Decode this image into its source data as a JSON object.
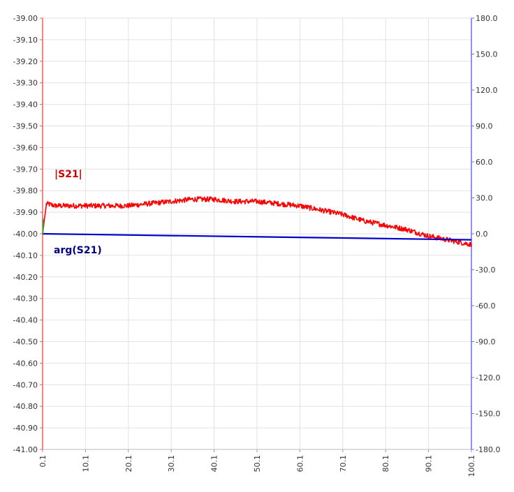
{
  "chart_data": {
    "type": "line",
    "x_ticks": [
      "0.1",
      "10.1",
      "20.1",
      "30.1",
      "40.1",
      "50.1",
      "60.1",
      "70.1",
      "80.1",
      "90.1",
      "100.1"
    ],
    "xlim": [
      0.1,
      100.1
    ],
    "y_left": {
      "ylim": [
        -41.0,
        -39.0
      ],
      "ticks": [
        "-39.00",
        "-39.10",
        "-39.20",
        "-39.30",
        "-39.40",
        "-39.50",
        "-39.60",
        "-39.70",
        "-39.80",
        "-39.90",
        "-40.00",
        "-40.10",
        "-40.20",
        "-40.30",
        "-40.40",
        "-40.50",
        "-40.60",
        "-40.70",
        "-40.80",
        "-40.90",
        "-41.00"
      ],
      "axis_color": "#ff5a5a"
    },
    "y_right": {
      "ylim": [
        -180.0,
        180.0
      ],
      "ticks": [
        "180.0",
        "150.0",
        "120.0",
        "90.0",
        "60.0",
        "30.0",
        "0.0",
        "-30.0",
        "-60.0",
        "-90.0",
        "-120.0",
        "-150.0",
        "-180.0"
      ],
      "axis_color": "#6a6aff"
    },
    "grid": true,
    "series": [
      {
        "name": "|S21|",
        "axis": "left",
        "color": "#ff0000",
        "x": [
          0.1,
          1,
          3,
          5,
          8,
          10,
          15,
          20,
          25,
          30,
          35,
          40,
          45,
          50,
          55,
          60,
          65,
          70,
          75,
          80,
          85,
          90,
          95,
          100.1
        ],
        "y": [
          -40.0,
          -39.86,
          -39.87,
          -39.87,
          -39.87,
          -39.87,
          -39.87,
          -39.87,
          -39.86,
          -39.85,
          -39.84,
          -39.84,
          -39.85,
          -39.85,
          -39.86,
          -39.87,
          -39.89,
          -39.91,
          -39.94,
          -39.96,
          -39.98,
          -40.01,
          -40.03,
          -40.05
        ],
        "noise": 0.012
      },
      {
        "name": "arg(S21)",
        "axis": "right",
        "color": "#0000cc",
        "x": [
          0.1,
          100.1
        ],
        "y": [
          0.0,
          -5.0
        ],
        "noise": 0
      }
    ],
    "labels": [
      {
        "text": "|S21|",
        "color": "#cc0000"
      },
      {
        "text": "arg(S21)",
        "color": "#000080"
      }
    ]
  }
}
